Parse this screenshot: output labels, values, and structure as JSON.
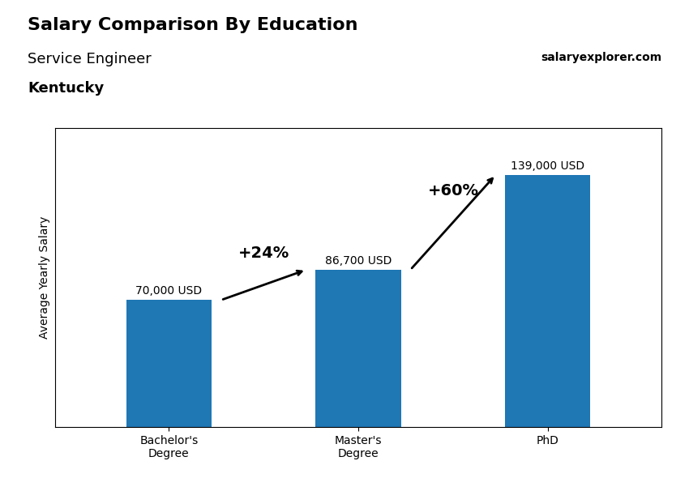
{
  "chart_data": {
    "type": "bar",
    "title": "Salary Comparison By Education",
    "subtitle": "Service Engineer",
    "annotations": [
      "Kentucky",
      "salaryexplorer.com",
      {
        "text": "+24%",
        "from": 0,
        "to": 1
      },
      {
        "text": "+60%",
        "from": 1,
        "to": 2
      }
    ],
    "categories": [
      "Bachelor's\nDegree",
      "Master's\nDegree",
      "PhD"
    ],
    "values": [
      70000,
      86700,
      139000
    ],
    "value_labels": [
      "70,000 USD",
      "86,700 USD",
      "139,000 USD"
    ],
    "data_labels": true,
    "ylabel": "Average Yearly Salary",
    "ylim": [
      0,
      165000
    ],
    "yticks": [],
    "tick_labels": "x",
    "grid": false
  }
}
